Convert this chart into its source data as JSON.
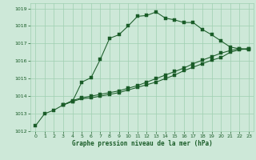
{
  "xlabel": "Graphe pression niveau de la mer (hPa)",
  "xlim": [
    -0.5,
    23.5
  ],
  "ylim": [
    1012,
    1019.3
  ],
  "yticks": [
    1012,
    1013,
    1014,
    1015,
    1016,
    1017,
    1018,
    1019
  ],
  "xticks": [
    0,
    1,
    2,
    3,
    4,
    5,
    6,
    7,
    8,
    9,
    10,
    11,
    12,
    13,
    14,
    15,
    16,
    17,
    18,
    19,
    20,
    21,
    22,
    23
  ],
  "background_color": "#cde8d8",
  "grid_color": "#9ecfb0",
  "line_color": "#1a5c28",
  "series1_x": [
    0,
    1,
    2,
    3,
    4,
    5,
    6,
    7,
    8,
    9,
    10,
    11,
    12,
    13,
    14,
    15,
    16,
    17,
    18,
    19,
    20,
    21,
    22,
    23
  ],
  "series1_y": [
    1012.3,
    1013.0,
    1013.2,
    1013.5,
    1013.7,
    1014.8,
    1015.05,
    1016.1,
    1017.3,
    1017.5,
    1018.0,
    1018.55,
    1018.6,
    1018.8,
    1018.45,
    1018.35,
    1018.2,
    1018.2,
    1017.8,
    1017.5,
    1017.15,
    1016.8,
    1016.7,
    1016.65
  ],
  "series1_markers": [
    0,
    1,
    2,
    3,
    4,
    5,
    6,
    7,
    8,
    9,
    10,
    11,
    12,
    13,
    14,
    15,
    16,
    17,
    18,
    19,
    20,
    21,
    22,
    23
  ],
  "series2_x": [
    3,
    4,
    5,
    6,
    7,
    8,
    9,
    10,
    11,
    12,
    13,
    14,
    15,
    16,
    17,
    18,
    19,
    20,
    21,
    22,
    23
  ],
  "series2_y": [
    1013.5,
    1013.7,
    1013.85,
    1013.9,
    1014.0,
    1014.1,
    1014.2,
    1014.35,
    1014.5,
    1014.65,
    1014.8,
    1015.0,
    1015.2,
    1015.45,
    1015.65,
    1015.85,
    1016.05,
    1016.2,
    1016.5,
    1016.65,
    1016.7
  ],
  "series3_x": [
    3,
    4,
    5,
    6,
    7,
    8,
    9,
    10,
    11,
    12,
    13,
    14,
    15,
    16,
    17,
    18,
    19,
    20,
    21,
    22,
    23
  ],
  "series3_y": [
    1013.5,
    1013.75,
    1013.9,
    1014.0,
    1014.1,
    1014.2,
    1014.3,
    1014.45,
    1014.6,
    1014.8,
    1015.0,
    1015.2,
    1015.4,
    1015.6,
    1015.85,
    1016.05,
    1016.25,
    1016.45,
    1016.6,
    1016.7,
    1016.7
  ]
}
